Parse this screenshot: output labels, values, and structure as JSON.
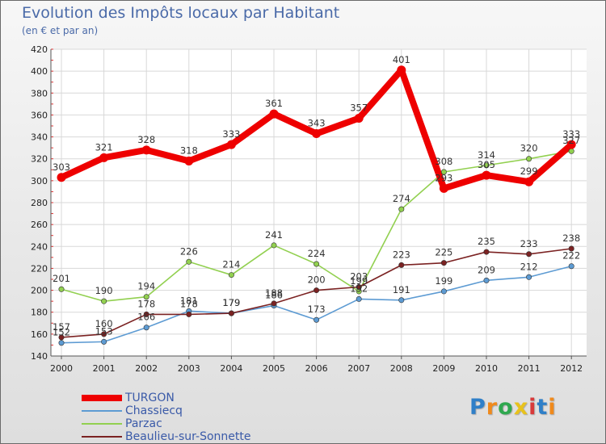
{
  "chart_data": {
    "type": "line",
    "title": "Evolution des Impôts locaux par Habitant",
    "subtitle": "(en € et par an)",
    "xlabel": "",
    "ylabel": "",
    "categories": [
      "2000",
      "2001",
      "2002",
      "2003",
      "2004",
      "2005",
      "2006",
      "2007",
      "2008",
      "2009",
      "2010",
      "2011",
      "2012"
    ],
    "ylim": [
      140,
      420
    ],
    "yticks": [
      140,
      160,
      180,
      200,
      220,
      240,
      260,
      280,
      300,
      320,
      340,
      360,
      380,
      400,
      420
    ],
    "grid": true,
    "legend_position": "bottom-left",
    "series": [
      {
        "name": "Chassiecq",
        "color": "#5d9bd3",
        "values": [
          152,
          153,
          166,
          181,
          179,
          186,
          173,
          192,
          191,
          199,
          209,
          212,
          222
        ]
      },
      {
        "name": "Parzac",
        "color": "#92d050",
        "values": [
          201,
          190,
          194,
          226,
          214,
          241,
          224,
          199,
          274,
          308,
          314,
          320,
          327
        ]
      },
      {
        "name": "Beaulieu-sur-Sonnette",
        "color": "#7b2222",
        "values": [
          157,
          160,
          178,
          178,
          179,
          188,
          200,
          203,
          223,
          225,
          235,
          233,
          238
        ]
      },
      {
        "name": "TURGON",
        "color": "#ee0000",
        "values": [
          303,
          321,
          328,
          318,
          333,
          361,
          343,
          357,
          401,
          293,
          305,
          299,
          333
        ]
      }
    ]
  },
  "logo": {
    "letters": [
      "P",
      "r",
      "o",
      "x",
      "i",
      "t",
      "i"
    ],
    "colors": [
      "#2f7fc8",
      "#f08a1c",
      "#2fa84f",
      "#e8c21c",
      "#d83a3a",
      "#2f7fc8",
      "#f08a1c"
    ]
  }
}
